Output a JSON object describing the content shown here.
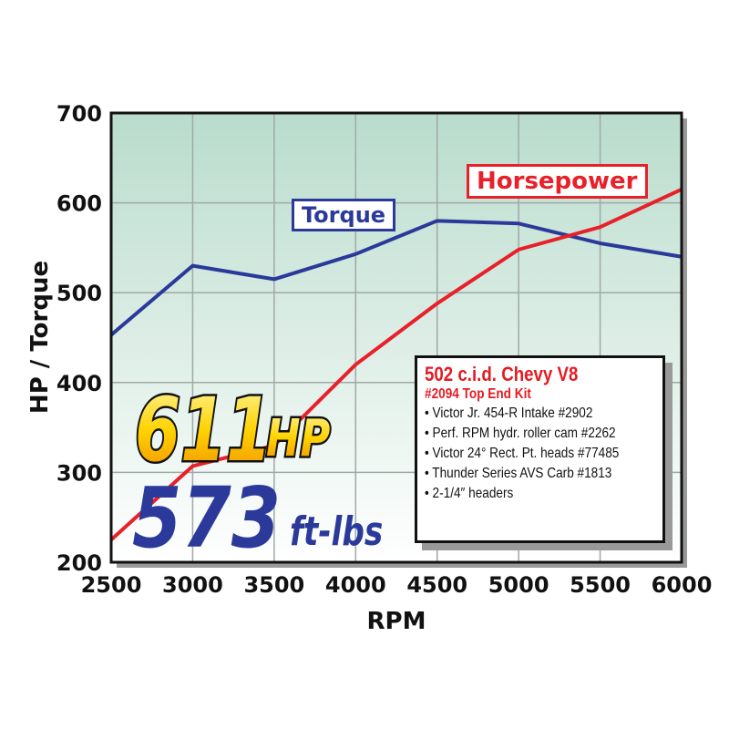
{
  "chart_data": {
    "type": "line",
    "title": "",
    "xlabel": "RPM",
    "ylabel": "HP / Torque",
    "xlim": [
      2500,
      6000
    ],
    "ylim": [
      200,
      700
    ],
    "x_ticks": [
      "2500",
      "3000",
      "3500",
      "4000",
      "4500",
      "5000",
      "5500",
      "6000"
    ],
    "y_ticks": [
      "200",
      "300",
      "400",
      "500",
      "600",
      "700"
    ],
    "grid": true,
    "x": [
      2500,
      3000,
      3500,
      4000,
      4500,
      5000,
      5500,
      6000
    ],
    "series": [
      {
        "name": "Torque",
        "color": "#2b3a9a",
        "values": [
          453,
          530,
          515,
          543,
          580,
          577,
          555,
          540
        ]
      },
      {
        "name": "Horsepower",
        "color": "#e8202a",
        "values": [
          225,
          307,
          330,
          420,
          488,
          548,
          573,
          615
        ]
      }
    ],
    "background_gradient": [
      "#b9dccc",
      "#ffffff"
    ]
  },
  "headline": {
    "hp_value": "611",
    "hp_unit": "HP",
    "torque_value": "573",
    "torque_unit": "ft-lbs"
  },
  "info_box": {
    "title": "502 c.i.d. Chevy V8",
    "subtitle": "#2094 Top End Kit",
    "items": [
      "• Victor Jr. 454-R Intake #2902",
      "• Perf. RPM hydr. roller cam #2262",
      "• Victor 24° Rect. Pt. heads #77485",
      "• Thunder Series AVS Carb #1813",
      "• 2-1/4″ headers"
    ]
  }
}
